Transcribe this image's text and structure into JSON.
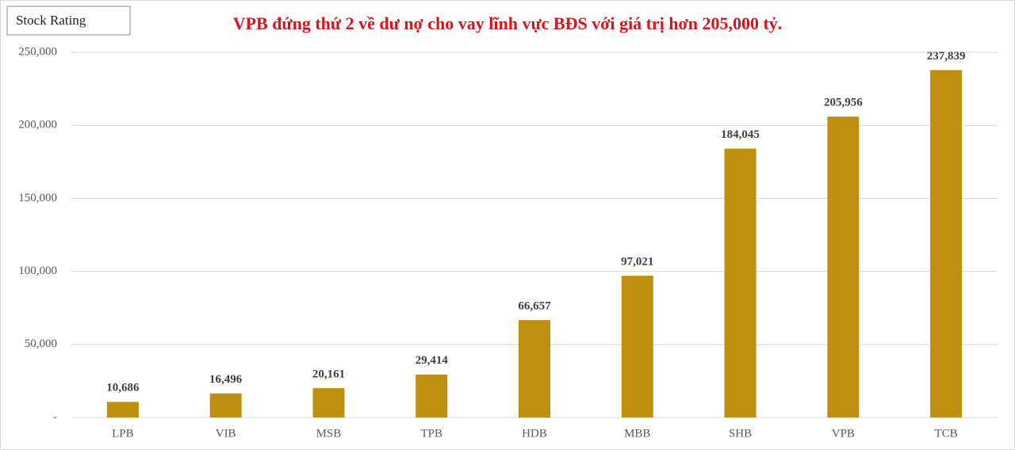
{
  "chart_data": {
    "type": "bar",
    "badge": "Stock Rating",
    "title": "VPB đứng thứ 2 về dư nợ cho vay lĩnh vực BĐS với giá trị hơn 205,000 tỷ.",
    "categories": [
      "LPB",
      "VIB",
      "MSB",
      "TPB",
      "HDB",
      "MBB",
      "SHB",
      "VPB",
      "TCB"
    ],
    "values": [
      10686,
      16496,
      20161,
      29414,
      66657,
      97021,
      184045,
      205956,
      237839
    ],
    "value_labels": [
      "10,686",
      "16,496",
      "20,161",
      "29,414",
      "66,657",
      "97,021",
      "184,045",
      "205,956",
      "237,839"
    ],
    "color": "#bf8f10",
    "ylim": [
      0,
      250000
    ],
    "yticks": [
      {
        "value": 0,
        "label": "-"
      },
      {
        "value": 50000,
        "label": "50,000"
      },
      {
        "value": 100000,
        "label": "100,000"
      },
      {
        "value": 150000,
        "label": "150,000"
      },
      {
        "value": 200000,
        "label": "200,000"
      },
      {
        "value": 250000,
        "label": "250,000"
      }
    ],
    "grid": true
  }
}
